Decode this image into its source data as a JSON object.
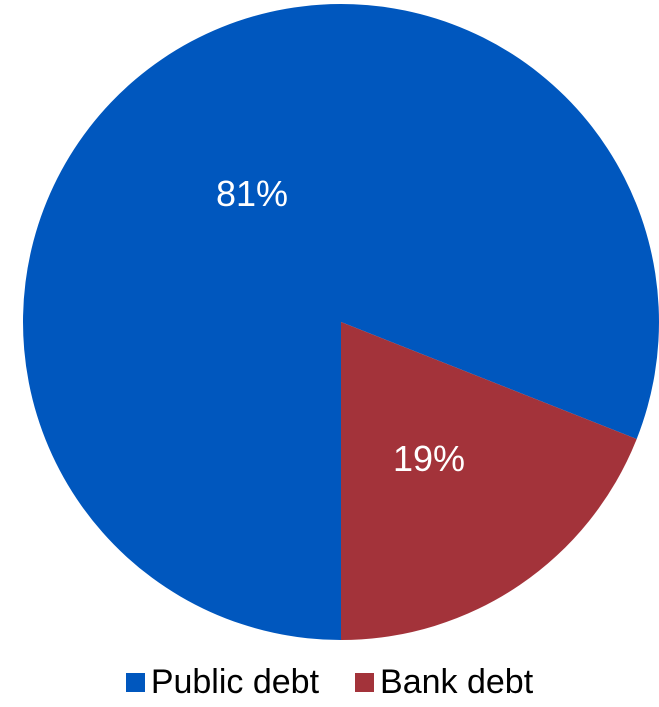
{
  "chart_data": {
    "type": "pie",
    "categories": [
      "Public debt",
      "Bank debt"
    ],
    "values": [
      81,
      19
    ],
    "data_labels": [
      "81%",
      "19%"
    ],
    "colors": [
      "#0057BE",
      "#A3333A"
    ],
    "legend_position": "bottom",
    "title": ""
  },
  "legend": {
    "items": [
      {
        "label": "Public debt",
        "color": "#0057BE"
      },
      {
        "label": "Bank debt",
        "color": "#A3333A"
      }
    ]
  }
}
